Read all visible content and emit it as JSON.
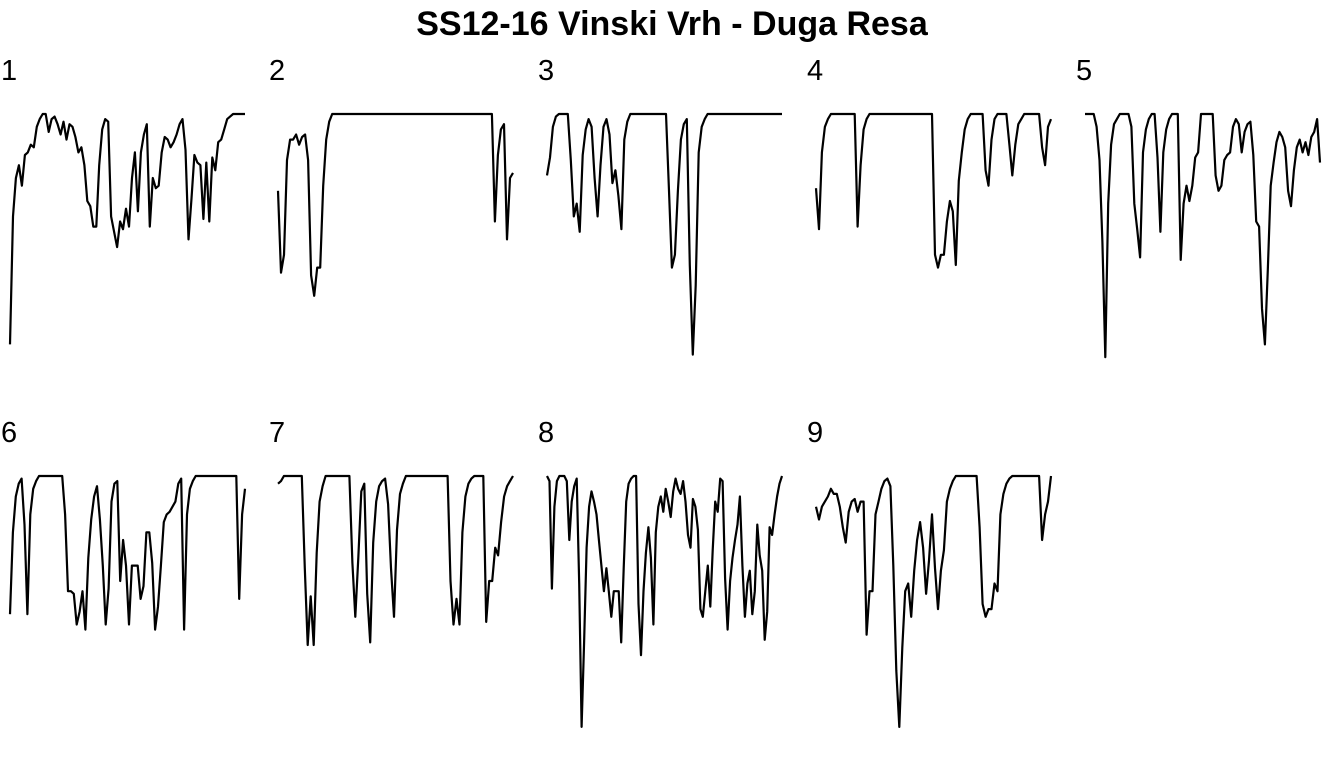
{
  "chart_data": {
    "type": "line",
    "title": "SS12-16 Vinski Vrh - Duga Resa",
    "xlabel": "",
    "ylabel": "",
    "grid": false,
    "axes_shown": false,
    "line_color": "#000000",
    "ylim": [
      0,
      1
    ],
    "panels": [
      {
        "label": "1",
        "values": [
          0.1,
          0.6,
          0.75,
          0.8,
          0.72,
          0.84,
          0.85,
          0.88,
          0.87,
          0.95,
          0.98,
          1.0,
          1.0,
          0.93,
          0.98,
          0.99,
          0.96,
          0.92,
          0.97,
          0.9,
          0.96,
          0.95,
          0.91,
          0.85,
          0.87,
          0.8,
          0.66,
          0.64,
          0.56,
          0.56,
          0.8,
          0.94,
          0.98,
          0.97,
          0.6,
          0.54,
          0.48,
          0.58,
          0.55,
          0.63,
          0.56,
          0.75,
          0.85,
          0.62,
          0.85,
          0.92,
          0.96,
          0.56,
          0.75,
          0.71,
          0.72,
          0.85,
          0.91,
          0.9,
          0.87,
          0.89,
          0.92,
          0.96,
          0.98,
          0.86,
          0.51,
          0.67,
          0.84,
          0.81,
          0.8,
          0.59,
          0.81,
          0.58,
          0.83,
          0.78,
          0.89,
          0.9,
          0.94,
          0.98,
          0.99,
          1.0,
          1.0,
          1.0,
          1.0,
          1.0
        ]
      },
      {
        "label": "2",
        "values": [
          0.7,
          0.38,
          0.45,
          0.82,
          0.9,
          0.9,
          0.92,
          0.88,
          0.91,
          0.92,
          0.82,
          0.37,
          0.29,
          0.4,
          0.4,
          0.72,
          0.9,
          0.97,
          1.0,
          1.0,
          1.0,
          1.0,
          1.0,
          1.0,
          1.0,
          1.0,
          1.0,
          1.0,
          1.0,
          1.0,
          1.0,
          1.0,
          1.0,
          1.0,
          1.0,
          1.0,
          1.0,
          1.0,
          1.0,
          1.0,
          1.0,
          1.0,
          1.0,
          1.0,
          1.0,
          1.0,
          1.0,
          1.0,
          1.0,
          1.0,
          1.0,
          1.0,
          1.0,
          1.0,
          1.0,
          1.0,
          1.0,
          1.0,
          1.0,
          1.0,
          1.0,
          1.0,
          1.0,
          1.0,
          1.0,
          1.0,
          1.0,
          1.0,
          1.0,
          1.0,
          1.0,
          1.0,
          0.58,
          0.84,
          0.94,
          0.96,
          0.51,
          0.75,
          0.77
        ]
      },
      {
        "label": "3",
        "values": [
          0.76,
          0.83,
          0.95,
          0.99,
          1.0,
          1.0,
          1.0,
          1.0,
          0.82,
          0.6,
          0.65,
          0.54,
          0.84,
          0.94,
          0.98,
          0.95,
          0.75,
          0.6,
          0.8,
          0.95,
          0.98,
          0.92,
          0.73,
          0.78,
          0.68,
          0.55,
          0.9,
          0.97,
          1.0,
          1.0,
          1.0,
          1.0,
          1.0,
          1.0,
          1.0,
          1.0,
          1.0,
          1.0,
          1.0,
          1.0,
          1.0,
          0.7,
          0.4,
          0.45,
          0.7,
          0.9,
          0.96,
          0.98,
          0.41,
          0.06,
          0.33,
          0.85,
          0.95,
          0.98,
          1.0,
          1.0,
          1.0,
          1.0,
          1.0,
          1.0,
          1.0,
          1.0,
          1.0,
          1.0,
          1.0,
          1.0,
          1.0,
          1.0,
          1.0,
          1.0,
          1.0,
          1.0,
          1.0,
          1.0,
          1.0,
          1.0,
          1.0,
          1.0,
          1.0,
          1.0
        ]
      },
      {
        "label": "4",
        "values": [
          0.71,
          0.55,
          0.85,
          0.95,
          0.98,
          1.0,
          1.0,
          1.0,
          1.0,
          1.0,
          1.0,
          1.0,
          1.0,
          1.0,
          0.56,
          0.8,
          0.94,
          0.98,
          1.0,
          1.0,
          1.0,
          1.0,
          1.0,
          1.0,
          1.0,
          1.0,
          1.0,
          1.0,
          1.0,
          1.0,
          1.0,
          1.0,
          1.0,
          1.0,
          1.0,
          1.0,
          1.0,
          1.0,
          1.0,
          1.0,
          0.45,
          0.4,
          0.45,
          0.45,
          0.58,
          0.66,
          0.62,
          0.41,
          0.74,
          0.85,
          0.94,
          0.98,
          1.0,
          1.0,
          1.0,
          1.0,
          1.0,
          0.78,
          0.72,
          0.9,
          0.98,
          1.0,
          1.0,
          1.0,
          1.0,
          0.88,
          0.76,
          0.88,
          0.96,
          0.98,
          1.0,
          1.0,
          1.0,
          1.0,
          1.0,
          1.0,
          0.87,
          0.8,
          0.95,
          0.98
        ]
      },
      {
        "label": "5",
        "values": [
          1.0,
          1.0,
          1.0,
          1.0,
          0.95,
          0.82,
          0.5,
          0.05,
          0.65,
          0.88,
          0.96,
          0.98,
          1.0,
          1.0,
          1.0,
          1.0,
          0.95,
          0.65,
          0.55,
          0.44,
          0.85,
          0.94,
          0.98,
          1.0,
          1.0,
          0.83,
          0.54,
          0.85,
          0.94,
          0.98,
          1.0,
          1.0,
          1.0,
          0.43,
          0.65,
          0.72,
          0.66,
          0.72,
          0.83,
          0.85,
          1.0,
          1.0,
          1.0,
          1.0,
          1.0,
          0.76,
          0.7,
          0.72,
          0.82,
          0.84,
          0.85,
          0.95,
          0.98,
          0.96,
          0.85,
          0.93,
          0.96,
          0.97,
          0.84,
          0.58,
          0.56,
          0.24,
          0.1,
          0.39,
          0.72,
          0.81,
          0.89,
          0.93,
          0.91,
          0.87,
          0.7,
          0.64,
          0.78,
          0.87,
          0.9,
          0.85,
          0.89,
          0.84,
          0.91,
          0.93,
          0.98,
          0.81
        ]
      },
      {
        "label": "6",
        "values": [
          0.46,
          0.78,
          0.92,
          0.97,
          0.99,
          0.81,
          0.46,
          0.85,
          0.95,
          0.98,
          1.0,
          1.0,
          1.0,
          1.0,
          1.0,
          1.0,
          1.0,
          1.0,
          1.0,
          0.85,
          0.55,
          0.55,
          0.54,
          0.42,
          0.47,
          0.55,
          0.4,
          0.68,
          0.83,
          0.92,
          0.96,
          0.83,
          0.65,
          0.42,
          0.56,
          0.9,
          0.97,
          0.98,
          0.59,
          0.75,
          0.65,
          0.42,
          0.65,
          0.65,
          0.65,
          0.52,
          0.57,
          0.78,
          0.78,
          0.66,
          0.4,
          0.49,
          0.65,
          0.82,
          0.85,
          0.86,
          0.88,
          0.9,
          0.97,
          0.99,
          0.4,
          0.85,
          0.95,
          0.98,
          1.0,
          1.0,
          1.0,
          1.0,
          1.0,
          1.0,
          1.0,
          1.0,
          1.0,
          1.0,
          1.0,
          1.0,
          1.0,
          1.0,
          1.0,
          0.52,
          0.85,
          0.95
        ]
      },
      {
        "label": "7",
        "values": [
          0.97,
          0.98,
          1.0,
          1.0,
          1.0,
          1.0,
          1.0,
          1.0,
          1.0,
          0.64,
          0.34,
          0.53,
          0.34,
          0.7,
          0.9,
          0.96,
          1.0,
          1.0,
          1.0,
          1.0,
          1.0,
          1.0,
          1.0,
          1.0,
          1.0,
          0.66,
          0.45,
          0.68,
          0.94,
          0.97,
          0.54,
          0.35,
          0.74,
          0.9,
          0.96,
          0.98,
          0.99,
          0.89,
          0.64,
          0.45,
          0.79,
          0.93,
          0.97,
          1.0,
          1.0,
          1.0,
          1.0,
          1.0,
          1.0,
          1.0,
          1.0,
          1.0,
          1.0,
          1.0,
          1.0,
          1.0,
          1.0,
          1.0,
          0.59,
          0.42,
          0.52,
          0.42,
          0.78,
          0.92,
          0.97,
          0.99,
          1.0,
          1.0,
          1.0,
          1.0,
          0.43,
          0.59,
          0.59,
          0.72,
          0.69,
          0.82,
          0.92,
          0.96,
          0.98,
          1.0
        ]
      },
      {
        "label": "8",
        "values": [
          1.0,
          0.98,
          0.56,
          0.88,
          0.98,
          1.0,
          1.0,
          1.0,
          0.98,
          0.75,
          0.9,
          0.96,
          0.99,
          0.58,
          0.02,
          0.35,
          0.72,
          0.88,
          0.94,
          0.9,
          0.85,
          0.75,
          0.65,
          0.55,
          0.64,
          0.55,
          0.45,
          0.55,
          0.55,
          0.55,
          0.35,
          0.64,
          0.9,
          0.97,
          0.99,
          1.0,
          1.0,
          0.5,
          0.3,
          0.55,
          0.7,
          0.8,
          0.68,
          0.42,
          0.78,
          0.88,
          0.92,
          0.86,
          0.95,
          0.9,
          0.84,
          0.94,
          0.99,
          0.95,
          0.93,
          0.98,
          0.9,
          0.77,
          0.72,
          0.91,
          0.88,
          0.79,
          0.48,
          0.45,
          0.55,
          0.65,
          0.49,
          0.71,
          0.9,
          0.86,
          0.99,
          0.98,
          0.6,
          0.4,
          0.59,
          0.68,
          0.75,
          0.81,
          0.92,
          0.65,
          0.45,
          0.58,
          0.63,
          0.46,
          0.55,
          0.81,
          0.69,
          0.63,
          0.36,
          0.47,
          0.8,
          0.77,
          0.85,
          0.92,
          0.97,
          1.0
        ]
      },
      {
        "label": "9",
        "values": [
          0.88,
          0.83,
          0.88,
          0.9,
          0.92,
          0.95,
          0.93,
          0.93,
          0.88,
          0.8,
          0.74,
          0.86,
          0.9,
          0.91,
          0.86,
          0.9,
          0.9,
          0.38,
          0.55,
          0.55,
          0.85,
          0.9,
          0.95,
          0.98,
          0.99,
          0.96,
          0.65,
          0.24,
          0.02,
          0.33,
          0.55,
          0.58,
          0.45,
          0.63,
          0.75,
          0.82,
          0.72,
          0.54,
          0.67,
          0.85,
          0.64,
          0.48,
          0.63,
          0.71,
          0.9,
          0.95,
          0.98,
          1.0,
          1.0,
          1.0,
          1.0,
          1.0,
          1.0,
          1.0,
          1.0,
          0.8,
          0.5,
          0.45,
          0.48,
          0.48,
          0.58,
          0.55,
          0.85,
          0.93,
          0.97,
          0.99,
          1.0,
          1.0,
          1.0,
          1.0,
          1.0,
          1.0,
          1.0,
          1.0,
          1.0,
          1.0,
          0.75,
          0.85,
          0.9,
          1.0
        ]
      }
    ]
  }
}
